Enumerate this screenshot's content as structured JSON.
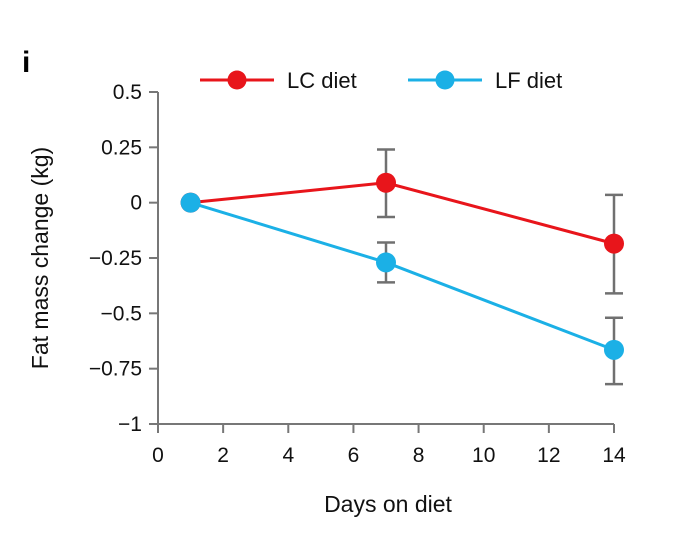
{
  "panel_label": "i",
  "chart_data": {
    "type": "line",
    "title": "",
    "xlabel": "Days on diet",
    "ylabel": "Fat mass change (kg)",
    "xlim": [
      0,
      14
    ],
    "ylim": [
      -1,
      0.5
    ],
    "xticks": [
      0,
      2,
      4,
      6,
      8,
      10,
      12,
      14
    ],
    "yticks": [
      0.5,
      0.25,
      0,
      -0.25,
      -0.5,
      -0.75,
      -1
    ],
    "xtick_labels": [
      "0",
      "2",
      "4",
      "6",
      "8",
      "10",
      "12",
      "14"
    ],
    "ytick_labels": [
      "0.5",
      "0.25",
      "0",
      "−0.25",
      "−0.5",
      "−0.75",
      "−1"
    ],
    "grid": false,
    "legend_position": "top",
    "series": [
      {
        "name": "LC diet",
        "color": "#e8151b",
        "x": [
          1,
          7,
          14
        ],
        "y": [
          0,
          0.09,
          -0.185
        ],
        "err_low": [
          null,
          -0.065,
          -0.41
        ],
        "err_high": [
          null,
          0.24,
          0.035
        ]
      },
      {
        "name": "LF diet",
        "color": "#1bb0e6",
        "x": [
          1,
          7,
          14
        ],
        "y": [
          0,
          -0.27,
          -0.665
        ],
        "err_low": [
          null,
          -0.36,
          -0.82
        ],
        "err_high": [
          null,
          -0.18,
          -0.52
        ]
      }
    ],
    "errorbar_color": "#707070"
  }
}
